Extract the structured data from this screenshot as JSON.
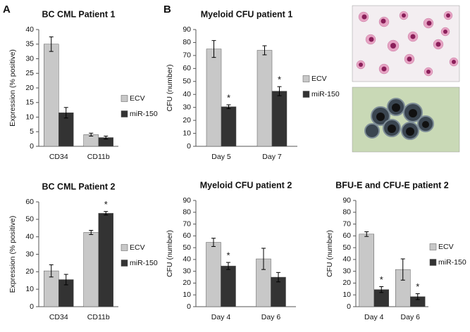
{
  "panel_labels": [
    "A",
    "B"
  ],
  "chart_data": [
    {
      "type": "bar",
      "title": "BC CML Patient 1",
      "y_label": "Expression (% positive)",
      "categories": [
        "CD34",
        "CD11b"
      ],
      "series": [
        {
          "name": "ECV",
          "color": "#c8c8c8",
          "values": [
            35,
            4
          ],
          "errors": [
            2.5,
            0.5
          ]
        },
        {
          "name": "miR-150",
          "color": "#333333",
          "values": [
            11.5,
            3
          ],
          "errors": [
            1.8,
            0.5
          ]
        }
      ],
      "ylim": [
        0,
        40
      ],
      "yticks": [
        0,
        5,
        10,
        15,
        20,
        25,
        30,
        35,
        40
      ],
      "legend": "right"
    },
    {
      "type": "bar",
      "title": "BC CML Patient 2",
      "y_label": "Expression (% positive)",
      "categories": [
        "CD34",
        "CD11b"
      ],
      "series": [
        {
          "name": "ECV",
          "color": "#c8c8c8",
          "values": [
            20.5,
            42.5
          ],
          "errors": [
            3.5,
            1.2
          ]
        },
        {
          "name": "miR-150",
          "color": "#333333",
          "values": [
            15.5,
            53.5
          ],
          "errors": [
            3,
            1
          ],
          "annotations": [
            null,
            "*"
          ]
        }
      ],
      "ylim": [
        0,
        60
      ],
      "yticks": [
        0,
        10,
        20,
        30,
        40,
        50,
        60
      ],
      "legend": "right"
    },
    {
      "type": "bar",
      "title": "Myeloid CFU patient 1",
      "y_label": "CFU (number)",
      "categories": [
        "Day 5",
        "Day 7"
      ],
      "series": [
        {
          "name": "ECV",
          "color": "#c8c8c8",
          "values": [
            75,
            74
          ],
          "errors": [
            6.5,
            3.5
          ]
        },
        {
          "name": "miR-150",
          "color": "#333333",
          "values": [
            30.5,
            42.5
          ],
          "errors": [
            1.5,
            3.5
          ],
          "annotations": [
            "*",
            "*"
          ]
        }
      ],
      "ylim": [
        0,
        90
      ],
      "yticks": [
        0,
        10,
        20,
        30,
        40,
        50,
        60,
        70,
        80,
        90
      ],
      "legend": "right"
    },
    {
      "type": "bar",
      "title": "Myeloid CFU patient 2",
      "y_label": "CFU (number)",
      "categories": [
        "Day 4",
        "Day 6"
      ],
      "series": [
        {
          "color": "#c8c8c8",
          "values": [
            54.5,
            40.5
          ],
          "errors": [
            3.5,
            9
          ]
        },
        {
          "color": "#333333",
          "values": [
            34.5,
            25
          ],
          "errors": [
            3,
            4
          ],
          "annotations": [
            "*",
            null
          ]
        }
      ],
      "ylim": [
        0,
        90
      ],
      "yticks": [
        0,
        10,
        20,
        30,
        40,
        50,
        60,
        70,
        80,
        90
      ]
    },
    {
      "type": "bar",
      "title": "BFU-E and CFU-E patient 2",
      "y_label": "CFU (number)",
      "categories": [
        "Day 4",
        "Day 6"
      ],
      "series": [
        {
          "name": "ECV",
          "color": "#c8c8c8",
          "values": [
            61.5,
            31.5
          ],
          "errors": [
            2,
            9
          ]
        },
        {
          "name": "miR-150",
          "color": "#333333",
          "values": [
            14.5,
            8.5
          ],
          "errors": [
            2.5,
            2.5
          ],
          "annotations": [
            "*",
            "*"
          ]
        }
      ],
      "ylim": [
        0,
        90
      ],
      "yticks": [
        0,
        10,
        20,
        30,
        40,
        50,
        60,
        70,
        80,
        90
      ],
      "legend": "right"
    }
  ]
}
